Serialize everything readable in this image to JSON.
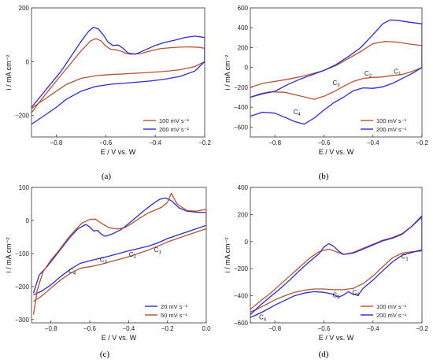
{
  "chart_data": [
    {
      "panel": "(a)",
      "type": "line",
      "xlabel": "E / V vs. W",
      "ylabel": "i / mA cm⁻²",
      "xlim": [
        -0.9,
        -0.2
      ],
      "ylim": [
        -280,
        200
      ],
      "xticks": [
        -0.8,
        -0.6,
        -0.4,
        -0.2
      ],
      "yticks": [
        -200,
        0,
        200
      ],
      "legend_position": "bottom-right",
      "annotations": [],
      "series": [
        {
          "name": "100 mV s⁻¹",
          "color": "#b5532f",
          "x": [
            -0.9,
            -0.86,
            -0.82,
            -0.78,
            -0.74,
            -0.7,
            -0.66,
            -0.64,
            -0.62,
            -0.6,
            -0.58,
            -0.56,
            -0.54,
            -0.52,
            -0.5,
            -0.46,
            -0.42,
            -0.38,
            -0.34,
            -0.3,
            -0.26,
            -0.22,
            -0.2,
            -0.2,
            -0.24,
            -0.3,
            -0.36,
            -0.42,
            -0.5,
            -0.58,
            -0.64,
            -0.7,
            -0.76,
            -0.8,
            -0.84,
            -0.88,
            -0.9
          ],
          "y": [
            -190,
            -140,
            -95,
            -50,
            -5,
            40,
            78,
            86,
            78,
            58,
            46,
            44,
            40,
            32,
            28,
            30,
            40,
            48,
            52,
            54,
            55,
            53,
            50,
            0,
            -18,
            -30,
            -36,
            -40,
            -44,
            -48,
            -52,
            -62,
            -85,
            -110,
            -135,
            -160,
            -175
          ]
        },
        {
          "name": "200 mV s⁻¹",
          "color": "#2b2bd6",
          "x": [
            -0.9,
            -0.86,
            -0.82,
            -0.78,
            -0.74,
            -0.7,
            -0.67,
            -0.65,
            -0.63,
            -0.61,
            -0.59,
            -0.57,
            -0.55,
            -0.53,
            -0.51,
            -0.48,
            -0.44,
            -0.4,
            -0.36,
            -0.32,
            -0.28,
            -0.24,
            -0.2,
            -0.2,
            -0.24,
            -0.3,
            -0.36,
            -0.42,
            -0.5,
            -0.58,
            -0.64,
            -0.7,
            -0.76,
            -0.8,
            -0.84,
            -0.88,
            -0.9
          ],
          "y": [
            -170,
            -125,
            -80,
            -35,
            20,
            75,
            112,
            128,
            122,
            100,
            72,
            60,
            62,
            50,
            32,
            28,
            44,
            60,
            72,
            80,
            90,
            95,
            90,
            0,
            -35,
            -55,
            -65,
            -72,
            -78,
            -84,
            -92,
            -110,
            -140,
            -170,
            -195,
            -220,
            -232
          ]
        }
      ]
    },
    {
      "panel": "(b)",
      "type": "line",
      "xlabel": "E / V vs. W",
      "ylabel": "i / mA cm⁻²",
      "xlim": [
        -0.9,
        -0.2
      ],
      "ylim": [
        -700,
        600
      ],
      "xticks": [
        -0.8,
        -0.6,
        -0.4,
        -0.2
      ],
      "yticks": [
        -600,
        -400,
        -200,
        0,
        200,
        400,
        600
      ],
      "legend_position": "bottom-right",
      "annotations": [
        {
          "label": "C",
          "sub": "1",
          "x": -0.3,
          "y": -60
        },
        {
          "label": "C",
          "sub": "2",
          "x": -0.42,
          "y": -80
        },
        {
          "label": "C",
          "sub": "3",
          "x": -0.55,
          "y": -175
        },
        {
          "label": "C",
          "sub": "4",
          "x": -0.71,
          "y": -470
        }
      ],
      "series": [
        {
          "name": "100 mV s⁻¹",
          "color": "#b5532f",
          "x": [
            -0.9,
            -0.85,
            -0.8,
            -0.75,
            -0.7,
            -0.65,
            -0.6,
            -0.55,
            -0.5,
            -0.45,
            -0.4,
            -0.35,
            -0.3,
            -0.25,
            -0.2,
            -0.2,
            -0.24,
            -0.28,
            -0.32,
            -0.36,
            -0.4,
            -0.44,
            -0.48,
            -0.52,
            -0.56,
            -0.6,
            -0.64,
            -0.7,
            -0.76,
            -0.82,
            -0.86,
            -0.9
          ],
          "y": [
            -200,
            -160,
            -140,
            -120,
            -95,
            -65,
            -30,
            20,
            90,
            160,
            240,
            262,
            255,
            235,
            220,
            0,
            -40,
            -70,
            -80,
            -95,
            -100,
            -110,
            -140,
            -190,
            -245,
            -290,
            -320,
            -285,
            -250,
            -245,
            -265,
            -300
          ]
        },
        {
          "name": "200 mV s⁻¹",
          "color": "#2b2bd6",
          "x": [
            -0.9,
            -0.85,
            -0.8,
            -0.75,
            -0.7,
            -0.65,
            -0.6,
            -0.55,
            -0.5,
            -0.45,
            -0.4,
            -0.36,
            -0.33,
            -0.3,
            -0.25,
            -0.2,
            -0.2,
            -0.24,
            -0.28,
            -0.32,
            -0.36,
            -0.4,
            -0.44,
            -0.48,
            -0.52,
            -0.56,
            -0.6,
            -0.64,
            -0.68,
            -0.72,
            -0.76,
            -0.8,
            -0.85,
            -0.9
          ],
          "y": [
            -300,
            -265,
            -240,
            -175,
            -120,
            -75,
            -30,
            30,
            110,
            200,
            330,
            440,
            478,
            475,
            455,
            440,
            0,
            -60,
            -110,
            -160,
            -195,
            -210,
            -205,
            -235,
            -300,
            -355,
            -430,
            -510,
            -570,
            -545,
            -500,
            -460,
            -450,
            -490
          ]
        }
      ]
    },
    {
      "panel": "(c)",
      "type": "line",
      "xlabel": "E / V vs. W",
      "ylabel": "i / mA cm⁻²",
      "xlim": [
        -0.9,
        0.0
      ],
      "ylim": [
        -310,
        100
      ],
      "xticks": [
        -0.8,
        -0.6,
        -0.4,
        -0.2,
        0.0
      ],
      "yticks": [
        -300,
        -200,
        -100,
        0,
        100
      ],
      "legend_position": "bottom-right",
      "annotations": [
        {
          "label": "C",
          "sub": "1",
          "x": -0.25,
          "y": -95
        },
        {
          "label": "C",
          "sub": "2",
          "x": -0.38,
          "y": -110
        },
        {
          "label": "C",
          "sub": "3",
          "x": -0.53,
          "y": -125
        },
        {
          "label": "C",
          "sub": "4",
          "x": -0.69,
          "y": -160
        }
      ],
      "series": [
        {
          "name": "20 mV s⁻¹",
          "color": "#2b2bd6",
          "x": [
            -0.89,
            -0.86,
            -0.82,
            -0.78,
            -0.74,
            -0.7,
            -0.66,
            -0.62,
            -0.6,
            -0.58,
            -0.56,
            -0.54,
            -0.52,
            -0.48,
            -0.44,
            -0.4,
            -0.36,
            -0.32,
            -0.28,
            -0.24,
            -0.21,
            -0.18,
            -0.14,
            -0.1,
            -0.05,
            0.0,
            0.0,
            -0.05,
            -0.1,
            -0.15,
            -0.2,
            -0.25,
            -0.3,
            -0.35,
            -0.4,
            -0.45,
            -0.5,
            -0.55,
            -0.6,
            -0.65,
            -0.7,
            -0.75,
            -0.8,
            -0.85,
            -0.89
          ],
          "y": [
            -220,
            -165,
            -140,
            -110,
            -80,
            -50,
            -25,
            -12,
            -20,
            -32,
            -30,
            -42,
            -48,
            -40,
            -28,
            -10,
            10,
            30,
            48,
            64,
            68,
            60,
            38,
            28,
            25,
            24,
            -15,
            -25,
            -35,
            -45,
            -55,
            -68,
            -78,
            -85,
            -92,
            -100,
            -108,
            -115,
            -122,
            -130,
            -148,
            -170,
            -195,
            -215,
            -225
          ]
        },
        {
          "name": "50 mV s⁻¹",
          "color": "#b5532f",
          "x": [
            -0.89,
            -0.87,
            -0.84,
            -0.8,
            -0.76,
            -0.72,
            -0.68,
            -0.64,
            -0.6,
            -0.57,
            -0.55,
            -0.53,
            -0.5,
            -0.46,
            -0.42,
            -0.38,
            -0.34,
            -0.3,
            -0.26,
            -0.23,
            -0.2,
            -0.18,
            -0.15,
            -0.1,
            -0.05,
            0.0,
            0.0,
            -0.05,
            -0.1,
            -0.15,
            -0.2,
            -0.25,
            -0.3,
            -0.35,
            -0.4,
            -0.45,
            -0.5,
            -0.55,
            -0.6,
            -0.65,
            -0.7,
            -0.75,
            -0.8,
            -0.85,
            -0.89
          ],
          "y": [
            -285,
            -210,
            -155,
            -120,
            -92,
            -60,
            -32,
            -8,
            3,
            4,
            -5,
            -12,
            -22,
            -26,
            -22,
            -8,
            8,
            22,
            32,
            40,
            55,
            82,
            50,
            30,
            28,
            34,
            -25,
            -35,
            -45,
            -55,
            -65,
            -78,
            -90,
            -100,
            -110,
            -118,
            -126,
            -134,
            -140,
            -145,
            -160,
            -180,
            -205,
            -230,
            -245
          ]
        }
      ]
    },
    {
      "panel": "(d)",
      "type": "line",
      "xlabel": "E / V vs. W",
      "ylabel": "i / mA cm⁻²",
      "xlim": [
        -0.9,
        -0.2
      ],
      "ylim": [
        -600,
        400
      ],
      "xticks": [
        -0.8,
        -0.6,
        -0.4,
        -0.2
      ],
      "yticks": [
        -600,
        -400,
        -200,
        0,
        200,
        400
      ],
      "legend_position": "bottom-right",
      "annotations": [
        {
          "label": "C",
          "sub": "1",
          "x": -0.27,
          "y": -125
        },
        {
          "label": "C",
          "sub": "2",
          "x": -0.47,
          "y": -390
        },
        {
          "label": "C",
          "sub": "3",
          "x": -0.55,
          "y": -410
        },
        {
          "label": "C",
          "sub": "4",
          "x": -0.85,
          "y": -575
        }
      ],
      "series": [
        {
          "name": "100 mV s⁻¹",
          "color": "#b5532f",
          "x": [
            -0.9,
            -0.86,
            -0.82,
            -0.78,
            -0.74,
            -0.7,
            -0.66,
            -0.62,
            -0.58,
            -0.55,
            -0.52,
            -0.48,
            -0.44,
            -0.4,
            -0.36,
            -0.32,
            -0.28,
            -0.24,
            -0.2,
            -0.2,
            -0.24,
            -0.28,
            -0.32,
            -0.36,
            -0.4,
            -0.44,
            -0.48,
            -0.52,
            -0.56,
            -0.6,
            -0.64,
            -0.68,
            -0.72,
            -0.76,
            -0.8,
            -0.84,
            -0.88,
            -0.9
          ],
          "y": [
            -500,
            -440,
            -385,
            -320,
            -255,
            -190,
            -125,
            -75,
            -55,
            -75,
            -95,
            -80,
            -50,
            -20,
            10,
            30,
            60,
            115,
            180,
            -70,
            -75,
            -85,
            -120,
            -185,
            -255,
            -310,
            -345,
            -355,
            -355,
            -350,
            -350,
            -360,
            -375,
            -400,
            -430,
            -470,
            -505,
            -520
          ]
        },
        {
          "name": "200 mV s⁻¹",
          "color": "#2b2bd6",
          "x": [
            -0.9,
            -0.86,
            -0.82,
            -0.78,
            -0.74,
            -0.7,
            -0.66,
            -0.62,
            -0.6,
            -0.58,
            -0.56,
            -0.54,
            -0.52,
            -0.48,
            -0.44,
            -0.4,
            -0.36,
            -0.32,
            -0.28,
            -0.24,
            -0.2,
            -0.2,
            -0.24,
            -0.28,
            -0.32,
            -0.36,
            -0.4,
            -0.44,
            -0.46,
            -0.48,
            -0.5,
            -0.52,
            -0.54,
            -0.56,
            -0.6,
            -0.64,
            -0.68,
            -0.72,
            -0.76,
            -0.8,
            -0.84,
            -0.88,
            -0.9
          ],
          "y": [
            -540,
            -470,
            -410,
            -350,
            -285,
            -215,
            -150,
            -90,
            -40,
            -15,
            -35,
            -70,
            -95,
            -85,
            -55,
            -25,
            5,
            25,
            55,
            115,
            190,
            -60,
            -80,
            -100,
            -150,
            -215,
            -285,
            -345,
            -395,
            -390,
            -370,
            -395,
            -410,
            -390,
            -375,
            -370,
            -380,
            -400,
            -435,
            -470,
            -510,
            -545,
            -560
          ]
        }
      ]
    }
  ]
}
